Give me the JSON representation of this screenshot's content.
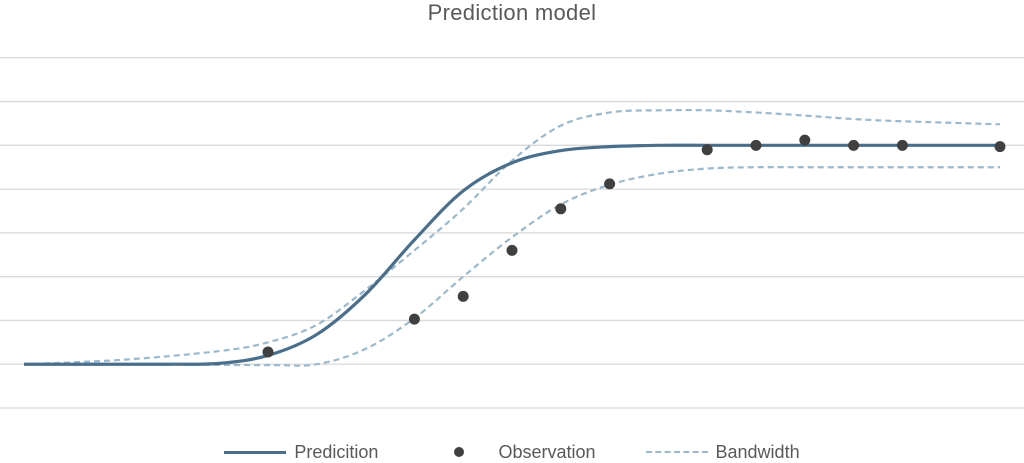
{
  "colors": {
    "prediction": "#4a6f8c",
    "observation": "#404040",
    "bandwidth": "#9bb8cc",
    "grid": "#d9d9d9",
    "text": "#595959"
  },
  "chart_data": {
    "type": "line",
    "title": "Prediction model",
    "xlabel": "",
    "ylabel": "",
    "grid": true,
    "xlim": [
      -5,
      15
    ],
    "ylim": [
      -1,
      8
    ],
    "legend_position": "bottom",
    "series": [
      {
        "name": "Predicition",
        "kind": "line",
        "style": "solid",
        "x": [
          -5,
          -4,
          -3,
          -2,
          -1,
          0,
          1,
          2,
          3,
          4,
          5,
          6,
          7,
          8,
          9,
          10,
          11,
          12,
          13,
          14,
          15
        ],
        "y": [
          0.0,
          0.0,
          0.0,
          0.0,
          0.02,
          0.2,
          0.68,
          1.6,
          2.84,
          3.96,
          4.6,
          4.88,
          4.97,
          5.0,
          5.0,
          5.0,
          5.0,
          5.0,
          5.0,
          5.0,
          5.0
        ]
      },
      {
        "name": "Observation",
        "kind": "scatter",
        "x": [
          0,
          3,
          4,
          5,
          6,
          7,
          9,
          10,
          11,
          12,
          13,
          15
        ],
        "y": [
          0.28,
          1.03,
          1.55,
          2.6,
          3.55,
          4.12,
          4.9,
          5.0,
          5.12,
          5.0,
          5.0,
          4.97
        ]
      },
      {
        "name": "Bandwidth",
        "kind": "line",
        "style": "dashed",
        "x": [
          -5,
          -3,
          -1,
          0,
          1,
          2,
          3,
          4,
          5,
          6,
          7,
          8,
          9,
          10,
          11,
          12,
          13,
          15
        ],
        "y": [
          0.0,
          0.1,
          0.3,
          0.5,
          0.9,
          1.7,
          2.6,
          3.55,
          4.65,
          5.45,
          5.75,
          5.8,
          5.8,
          5.75,
          5.68,
          5.6,
          5.55,
          5.48
        ]
      },
      {
        "name": "",
        "kind": "line",
        "style": "dashed",
        "x": [
          -5,
          -3,
          0,
          1,
          2,
          3,
          4,
          5,
          6,
          7,
          8,
          9,
          10,
          11,
          12,
          13,
          15
        ],
        "y": [
          0.0,
          0.0,
          -0.02,
          0.0,
          0.35,
          1.05,
          2.0,
          2.9,
          3.65,
          4.1,
          4.35,
          4.47,
          4.5,
          4.5,
          4.5,
          4.5,
          4.5
        ]
      }
    ]
  }
}
